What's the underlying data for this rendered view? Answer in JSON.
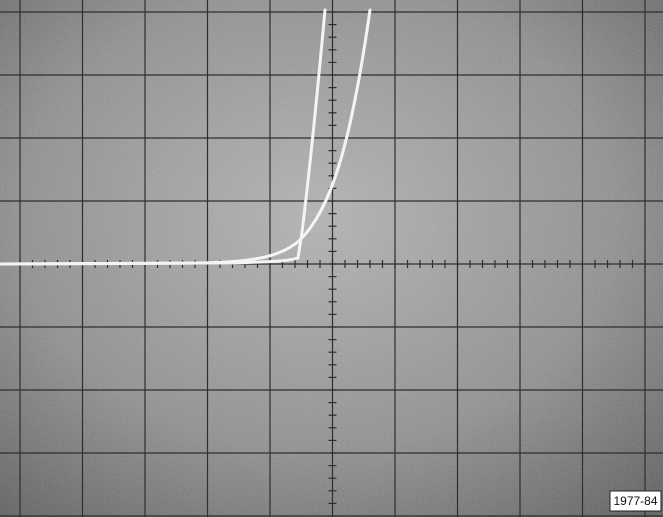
{
  "figure": {
    "label": "1977-84"
  }
}
